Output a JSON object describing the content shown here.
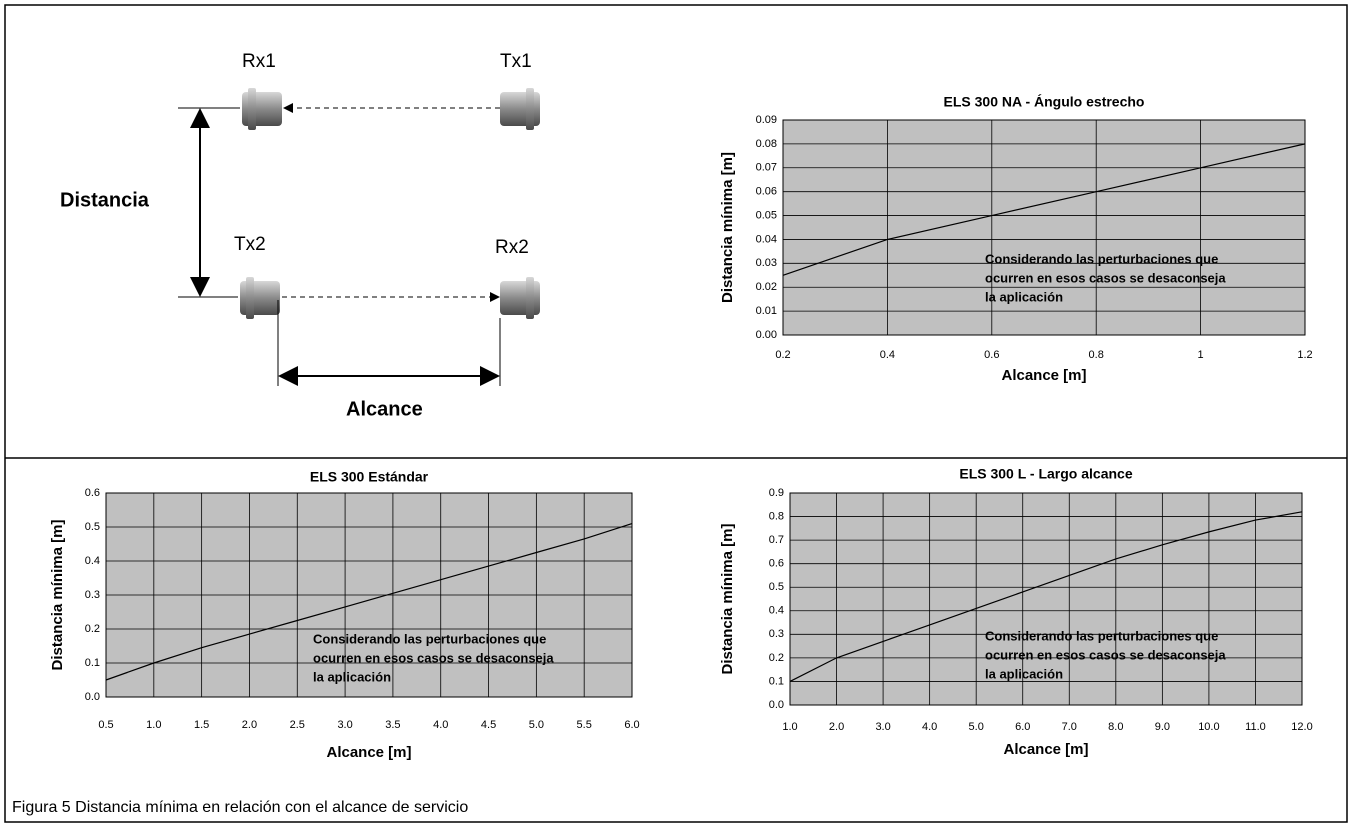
{
  "diagram": {
    "rx1": "Rx1",
    "tx1": "Tx1",
    "tx2": "Tx2",
    "rx2": "Rx2",
    "distance_label": "Distancia",
    "range_label": "Alcance"
  },
  "chart_data": [
    {
      "type": "line",
      "title": "ELS 300 NA - Ángulo estrecho",
      "xlabel": "Alcance [m]",
      "ylabel": "Distancia mínima [m]",
      "x": [
        0.2,
        0.4,
        0.6,
        0.8,
        1,
        1.2
      ],
      "values": [
        0.025,
        0.04,
        0.05,
        0.06,
        0.07,
        0.08
      ],
      "color": "#000000",
      "background": "#c0c0c0",
      "grid": true,
      "xlim": [
        0.2,
        1.2
      ],
      "xticks": [
        0.2,
        0.4,
        0.6,
        0.8,
        1,
        1.2
      ],
      "ylim": [
        0,
        0.09
      ],
      "yticks": [
        {
          "value": 0,
          "label": "0.00"
        },
        {
          "value": 0.01,
          "label": "0.01"
        },
        {
          "value": 0.02,
          "label": "0.02"
        },
        {
          "value": 0.03,
          "label": "0.03"
        },
        {
          "value": 0.04,
          "label": "0.04"
        },
        {
          "value": 0.05,
          "label": "0.05"
        },
        {
          "value": 0.06,
          "label": "0.06"
        },
        {
          "value": 0.07,
          "label": "0.07"
        },
        {
          "value": 0.08,
          "label": "0.08"
        },
        {
          "value": 0.09,
          "label": "0.09"
        }
      ],
      "annotation": [
        "Considerando las perturbaciones que",
        "ocurren en esos casos se desaconseja",
        "la aplicación"
      ]
    },
    {
      "type": "line",
      "title": "ELS 300 Estándar",
      "xlabel": "Alcance [m]",
      "ylabel": "Distancia mínima [m]",
      "x": [
        0.5,
        1,
        1.5,
        2,
        2.5,
        3,
        3.5,
        4,
        4.5,
        5,
        5.5,
        6
      ],
      "values": [
        0.05,
        0.1,
        0.145,
        0.185,
        0.225,
        0.265,
        0.305,
        0.345,
        0.385,
        0.425,
        0.465,
        0.51
      ],
      "color": "#000000",
      "background": "#c0c0c0",
      "grid": true,
      "xlim": [
        0.5,
        6
      ],
      "xticks": [
        0.5,
        {
          "value": 1,
          "label": "1.0"
        },
        1.5,
        {
          "value": 2,
          "label": "2.0"
        },
        2.5,
        {
          "value": 3,
          "label": "3.0"
        },
        3.5,
        {
          "value": 4,
          "label": "4.0"
        },
        4.5,
        {
          "value": 5,
          "label": "5.0"
        },
        5.5,
        {
          "value": 6,
          "label": "6.0"
        }
      ],
      "ylim": [
        0,
        0.6
      ],
      "yticks": [
        {
          "value": 0,
          "label": "0.0"
        },
        0.1,
        0.2,
        0.3,
        0.4,
        0.5,
        0.6
      ],
      "annotation": [
        "Considerando las perturbaciones que",
        "ocurren en esos casos se desaconseja",
        "la aplicación"
      ]
    },
    {
      "type": "line",
      "title": "ELS 300 L - Largo alcance",
      "xlabel": "Alcance [m]",
      "ylabel": "Distancia mínima [m]",
      "x": [
        1,
        2,
        3,
        4,
        5,
        6,
        7,
        8,
        9,
        10,
        11,
        12
      ],
      "values": [
        0.1,
        0.2,
        0.27,
        0.34,
        0.41,
        0.48,
        0.55,
        0.62,
        0.68,
        0.735,
        0.785,
        0.82
      ],
      "color": "#000000",
      "background": "#c0c0c0",
      "grid": true,
      "xlim": [
        1,
        12
      ],
      "xticks": [
        {
          "value": 1,
          "label": "1.0"
        },
        {
          "value": 2,
          "label": "2.0"
        },
        {
          "value": 3,
          "label": "3.0"
        },
        {
          "value": 4,
          "label": "4.0"
        },
        {
          "value": 5,
          "label": "5.0"
        },
        {
          "value": 6,
          "label": "6.0"
        },
        {
          "value": 7,
          "label": "7.0"
        },
        {
          "value": 8,
          "label": "8.0"
        },
        {
          "value": 9,
          "label": "9.0"
        },
        {
          "value": 10,
          "label": "10.0"
        },
        {
          "value": 11,
          "label": "11.0"
        },
        {
          "value": 12,
          "label": "12.0"
        }
      ],
      "ylim": [
        0,
        0.9
      ],
      "yticks": [
        {
          "value": 0,
          "label": "0.0"
        },
        0.1,
        0.2,
        0.3,
        0.4,
        0.5,
        0.6,
        0.7,
        0.8,
        0.9
      ],
      "annotation": [
        "Considerando las perturbaciones que",
        "ocurren en esos casos se desaconseja",
        "la aplicación"
      ]
    }
  ],
  "caption": "Figura 5 Distancia mínima en relación con el alcance de servicio"
}
